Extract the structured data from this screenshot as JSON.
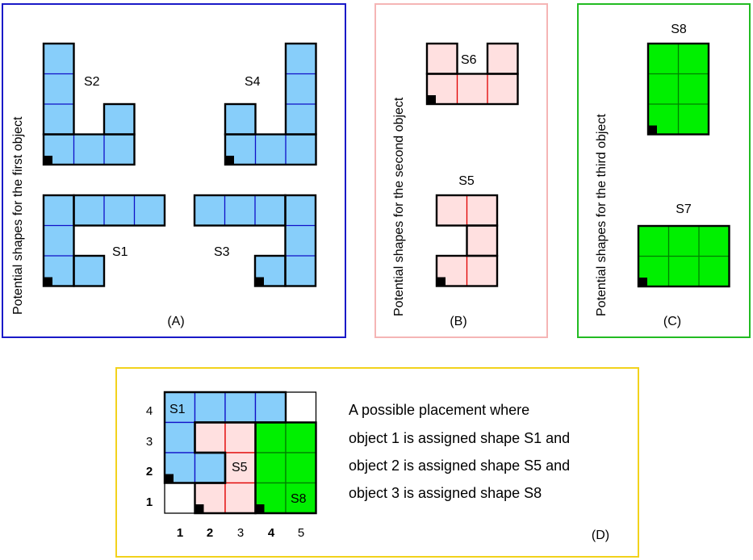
{
  "panels": {
    "a": {
      "caption": "(A)",
      "side_label": "Potential shapes for the first object"
    },
    "b": {
      "caption": "(B)",
      "side_label": "Potential shapes for the second object"
    },
    "c": {
      "caption": "(C)",
      "side_label": "Potential shapes for the third object"
    },
    "d": {
      "caption": "(D)"
    }
  },
  "shapes": {
    "s1": "S1",
    "s2": "S2",
    "s3": "S3",
    "s4": "S4",
    "s5": "S5",
    "s6": "S6",
    "s7": "S7",
    "s8": "S8"
  },
  "placement": {
    "grid_labels": {
      "s1": "S1",
      "s5": "S5",
      "s8": "S8"
    },
    "x_ticks": [
      "1",
      "2",
      "3",
      "4",
      "5"
    ],
    "y_ticks": [
      "4",
      "3",
      "2",
      "1"
    ],
    "description": [
      "A possible placement where",
      "object 1 is assigned shape S1 and",
      "object 2 is assigned shape S5 and",
      "object 3 is assigned shape S8"
    ]
  },
  "colors": {
    "blue_fill": "#87cefa",
    "blue_line": "#1010c8",
    "pink_fill": "#ffe0e0",
    "pink_line": "#e00000",
    "green_fill": "#00f000",
    "green_line": "#008000",
    "frame_a": "#1a1ac8",
    "frame_b": "#f5b5b5",
    "frame_c": "#22bb22",
    "frame_d": "#f2d21c"
  }
}
